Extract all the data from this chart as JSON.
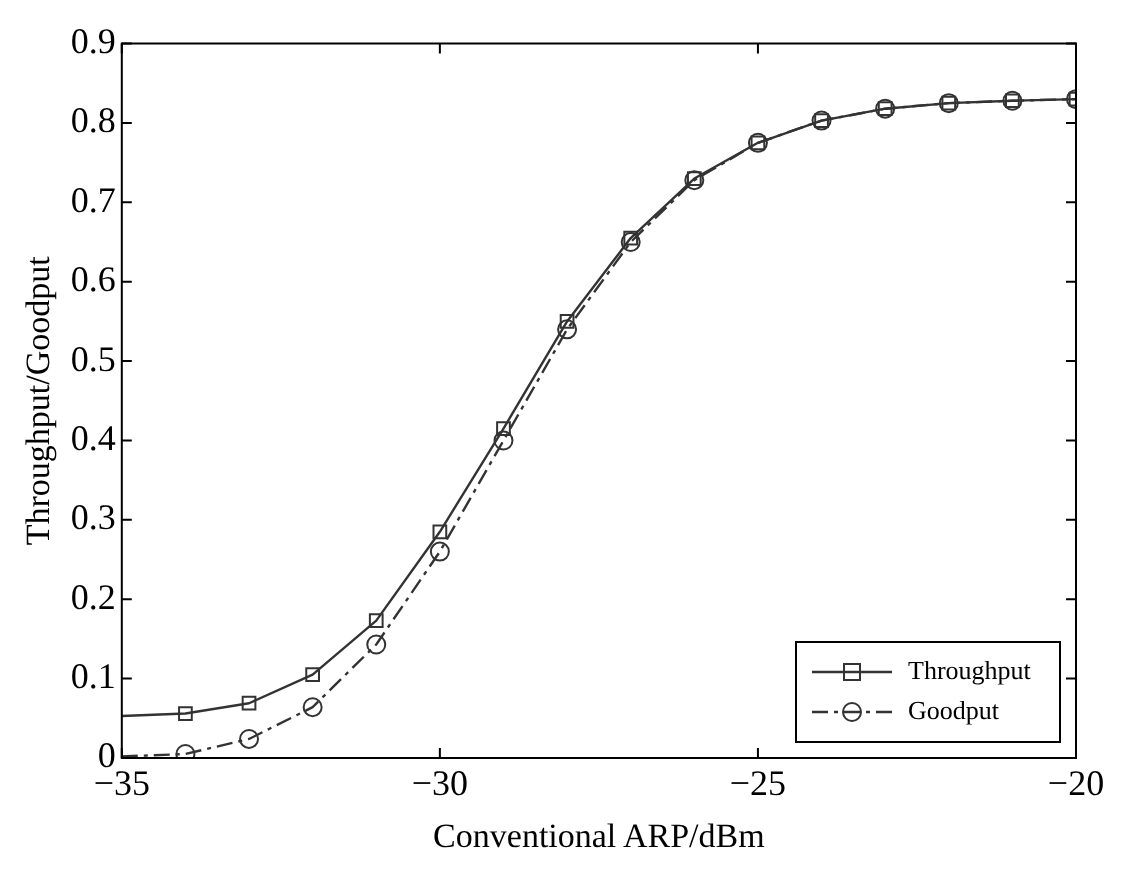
{
  "chart_data": {
    "type": "line",
    "xlabel": "Conventional ARP/dBm",
    "ylabel": "Throughput/Goodput",
    "xlim": [
      -35,
      -20
    ],
    "xticks": [
      {
        "value": -35,
        "label": "−35"
      },
      {
        "value": -30,
        "label": "−30"
      },
      {
        "value": -25,
        "label": "−25"
      },
      {
        "value": -20,
        "label": "−20"
      }
    ],
    "ylim": [
      0,
      0.9
    ],
    "yticks": [
      0,
      0.1,
      0.2,
      0.3,
      0.4,
      0.5,
      0.6,
      0.7,
      0.8,
      0.9
    ],
    "grid": false,
    "legend": "bottom right",
    "x": [
      -35,
      -34,
      -33,
      -32,
      -31,
      -30,
      -29,
      -28,
      -27,
      -26,
      -25,
      -24,
      -23,
      -22,
      -21,
      -20
    ],
    "series": [
      {
        "name": "Throughput",
        "color": "#333333",
        "marker": "square",
        "line_style": "solid",
        "values": [
          0.053,
          0.056,
          0.069,
          0.105,
          0.173,
          0.285,
          0.415,
          0.55,
          0.655,
          0.73,
          0.775,
          0.803,
          0.818,
          0.825,
          0.828,
          0.83
        ]
      },
      {
        "name": "Goodput",
        "color": "#333333",
        "marker": "circle",
        "line_style": "dashed",
        "values": [
          0.002,
          0.005,
          0.024,
          0.064,
          0.143,
          0.26,
          0.4,
          0.54,
          0.65,
          0.728,
          0.775,
          0.803,
          0.818,
          0.825,
          0.828,
          0.83
        ]
      }
    ]
  }
}
